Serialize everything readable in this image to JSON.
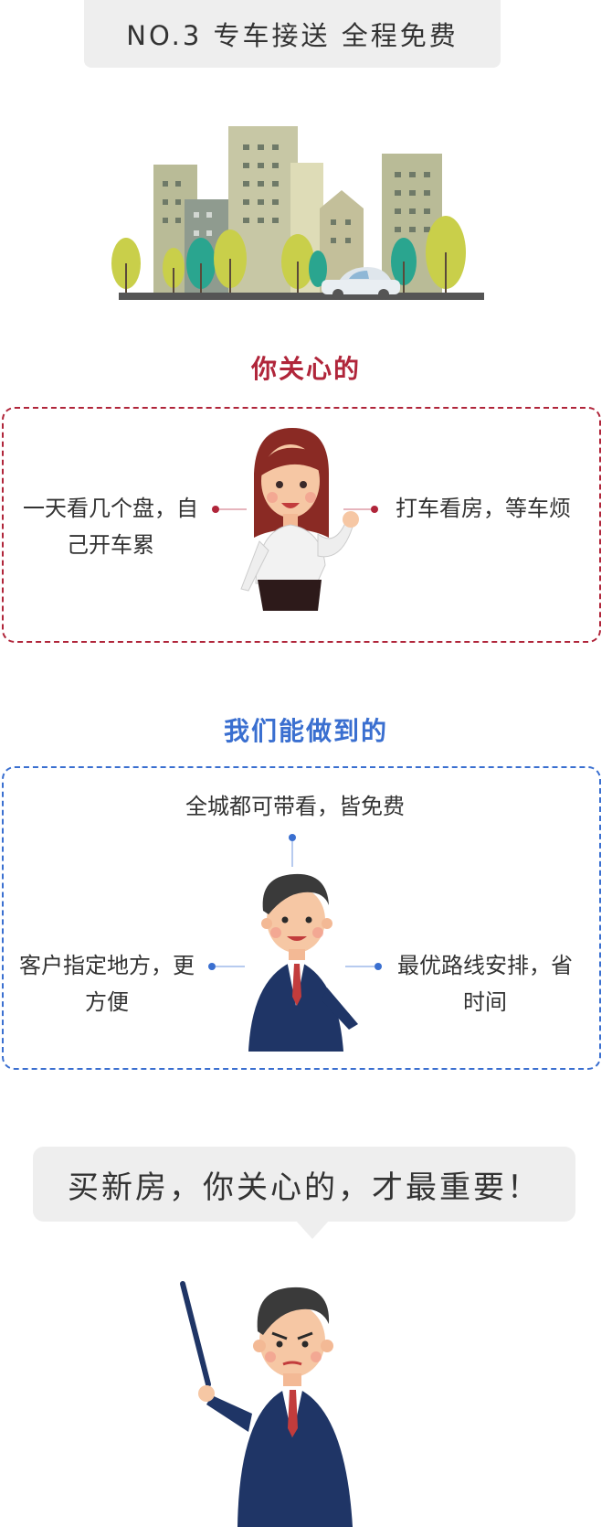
{
  "header": {
    "title": "NO.3  专车接送 全程免费"
  },
  "section_care": {
    "title": "你关心的",
    "color": "#b0253a",
    "left_text": [
      "一天看几个盘，自",
      "己开车累"
    ],
    "right_text": "打车看房，等车烦"
  },
  "section_do": {
    "title": "我们能做到的",
    "color": "#3a6fd0",
    "top_text": "全城都可带看，皆免费",
    "left_text": [
      "客户指定地方，更",
      "方便"
    ],
    "right_text": [
      "最优路线安排，省",
      "时间"
    ]
  },
  "bubble": {
    "text": "买新房，你关心的，才最重要！"
  },
  "icons": [
    "city-skyline-illustration",
    "car-icon",
    "woman-illustration",
    "man-illustration",
    "man-pointer-illustration"
  ]
}
